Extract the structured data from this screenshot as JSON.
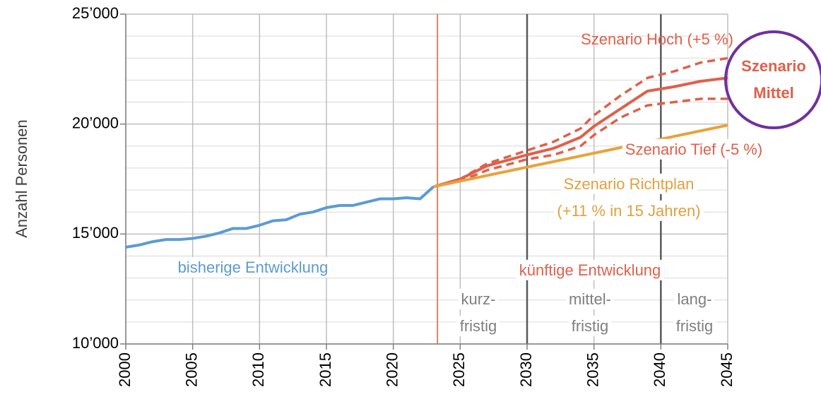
{
  "chart_data": {
    "type": "line",
    "ylabel": "Anzahl Personen",
    "xlim": [
      2000,
      2045
    ],
    "xticks": [
      2000,
      2005,
      2010,
      2015,
      2020,
      2025,
      2030,
      2035,
      2040,
      2045
    ],
    "ylim": [
      10000,
      25000
    ],
    "yticks": [
      {
        "value": 10000,
        "label": "10’000"
      },
      {
        "value": 15000,
        "label": "15’000"
      },
      {
        "value": 20000,
        "label": "20’000"
      },
      {
        "value": 25000,
        "label": "25’000"
      }
    ],
    "y_minor_ticks": [
      11000,
      12000,
      13000,
      14000,
      16000,
      17000,
      18000,
      19000,
      21000,
      22000,
      23000,
      24000
    ],
    "grid": true,
    "today_line": 2023.3,
    "phase_lines": [
      2030,
      2040
    ],
    "series": [
      {
        "name": "bisherige Entwicklung",
        "color": "#5b9bd5",
        "dash": false,
        "x": [
          2000,
          2001,
          2002,
          2003,
          2004,
          2005,
          2006,
          2007,
          2008,
          2009,
          2010,
          2011,
          2012,
          2013,
          2014,
          2015,
          2016,
          2017,
          2018,
          2019,
          2020,
          2021,
          2022,
          2023
        ],
        "values": [
          14400,
          14500,
          14650,
          14750,
          14750,
          14800,
          14900,
          15050,
          15250,
          15250,
          15400,
          15600,
          15650,
          15900,
          16000,
          16200,
          16300,
          16300,
          16450,
          16600,
          16600,
          16650,
          16600,
          17150
        ]
      },
      {
        "name": "Szenario Mittel",
        "color": "#e0604a",
        "dash": false,
        "x": [
          2023,
          2025,
          2027,
          2030,
          2032,
          2034,
          2035,
          2037,
          2039,
          2041,
          2043,
          2045
        ],
        "values": [
          17150,
          17500,
          18100,
          18600,
          18900,
          19400,
          19900,
          20700,
          21500,
          21700,
          21950,
          22100
        ]
      },
      {
        "name": "Szenario Hoch (+5 %)",
        "color": "#e0604a",
        "dash": true,
        "x": [
          2023,
          2025,
          2027,
          2030,
          2032,
          2034,
          2035,
          2037,
          2039,
          2041,
          2043,
          2045
        ],
        "values": [
          17150,
          17500,
          18200,
          18800,
          19200,
          19800,
          20400,
          21300,
          22100,
          22400,
          22800,
          23000
        ]
      },
      {
        "name": "Szenario Tief (-5 %)",
        "color": "#e0604a",
        "dash": true,
        "x": [
          2023,
          2025,
          2027,
          2030,
          2032,
          2034,
          2035,
          2037,
          2039,
          2041,
          2043,
          2045
        ],
        "values": [
          17150,
          17400,
          17900,
          18400,
          18600,
          19000,
          19500,
          20300,
          20850,
          21000,
          21150,
          21150
        ]
      },
      {
        "name": "Szenario Richtplan",
        "color": "#e8a33a",
        "dash": false,
        "x": [
          2023,
          2045
        ],
        "values": [
          17150,
          19950
        ]
      }
    ],
    "annotations": [
      {
        "text": "Szenario Hoch (+5 %)",
        "color": "#e0604a"
      },
      {
        "text": "Szenario",
        "color": "#e0604a"
      },
      {
        "text": "Mittel",
        "color": "#e0604a"
      },
      {
        "text": "Szenario Tief (-5 %)",
        "color": "#e0604a"
      },
      {
        "text": "Szenario Richtplan",
        "color": "#e0a040"
      },
      {
        "text": "(+11 % in 15 Jahren)",
        "color": "#e0a040"
      },
      {
        "text": "bisherige Entwicklung",
        "color": "#5b9bd5"
      },
      {
        "text": "künftige Entwicklung",
        "color": "#e0604a"
      },
      {
        "text": "kurz-",
        "color": "#7f7f7f"
      },
      {
        "text": "fristig",
        "color": "#7f7f7f"
      },
      {
        "text": "mittel-",
        "color": "#7f7f7f"
      },
      {
        "text": "fristig",
        "color": "#7f7f7f"
      },
      {
        "text": "lang-",
        "color": "#7f7f7f"
      },
      {
        "text": "fristig",
        "color": "#7f7f7f"
      }
    ]
  }
}
